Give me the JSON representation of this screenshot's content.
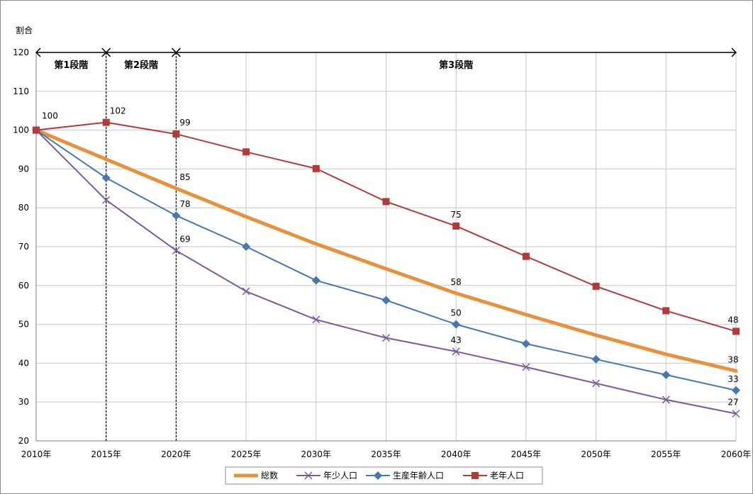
{
  "chart_data": {
    "type": "line",
    "ylabel": "割合",
    "ylim": [
      20,
      120
    ],
    "yticks": [
      "20",
      "30",
      "40",
      "50",
      "60",
      "70",
      "80",
      "90",
      "100",
      "110",
      "120"
    ],
    "categories": [
      "2010年",
      "2015年",
      "2020年",
      "2025年",
      "2030年",
      "2035年",
      "2040年",
      "2045年",
      "2050年",
      "2055年",
      "2060年"
    ],
    "grid": true,
    "legend_position": "bottom",
    "stages": [
      {
        "label": "第1段階",
        "from": 0,
        "to": 1
      },
      {
        "label": "第2段階",
        "from": 1,
        "to": 2
      },
      {
        "label": "第3段階",
        "from": 2,
        "to": 10
      }
    ],
    "series": [
      {
        "name": "総数",
        "color": "#e8913c",
        "marker": "none",
        "width": 5,
        "values": [
          100,
          92.5,
          85,
          77.7,
          70.7,
          64.3,
          58,
          52.5,
          47.2,
          42.3,
          38
        ],
        "labels": {
          "2": "85",
          "6": "58",
          "10": "38"
        }
      },
      {
        "name": "年少人口",
        "color": "#7b5a9e",
        "marker": "x",
        "width": 2,
        "values": [
          100,
          82,
          69,
          58.5,
          51.2,
          46.5,
          43,
          39,
          34.8,
          30.6,
          27
        ],
        "labels": {
          "2": "69",
          "6": "43",
          "10": "27"
        }
      },
      {
        "name": "生産年齢人口",
        "color": "#4677b0",
        "marker": "diamond",
        "width": 2,
        "values": [
          100,
          87.7,
          78,
          70,
          61.3,
          56.2,
          50,
          45,
          41,
          37,
          33
        ],
        "labels": {
          "2": "78",
          "6": "50",
          "10": "33"
        }
      },
      {
        "name": "老年人口",
        "color": "#b33a3a",
        "marker": "square",
        "width": 2,
        "values": [
          100,
          102,
          99,
          94.4,
          90.1,
          81.6,
          75.3,
          67.5,
          59.8,
          53.5,
          48.2
        ],
        "labels": {
          "0": "100",
          "1": "102",
          "2": "99",
          "6": "75",
          "10": "48"
        }
      }
    ],
    "legend": [
      "総数",
      "年少人口",
      "生産年齢人口",
      "老年人口"
    ]
  }
}
